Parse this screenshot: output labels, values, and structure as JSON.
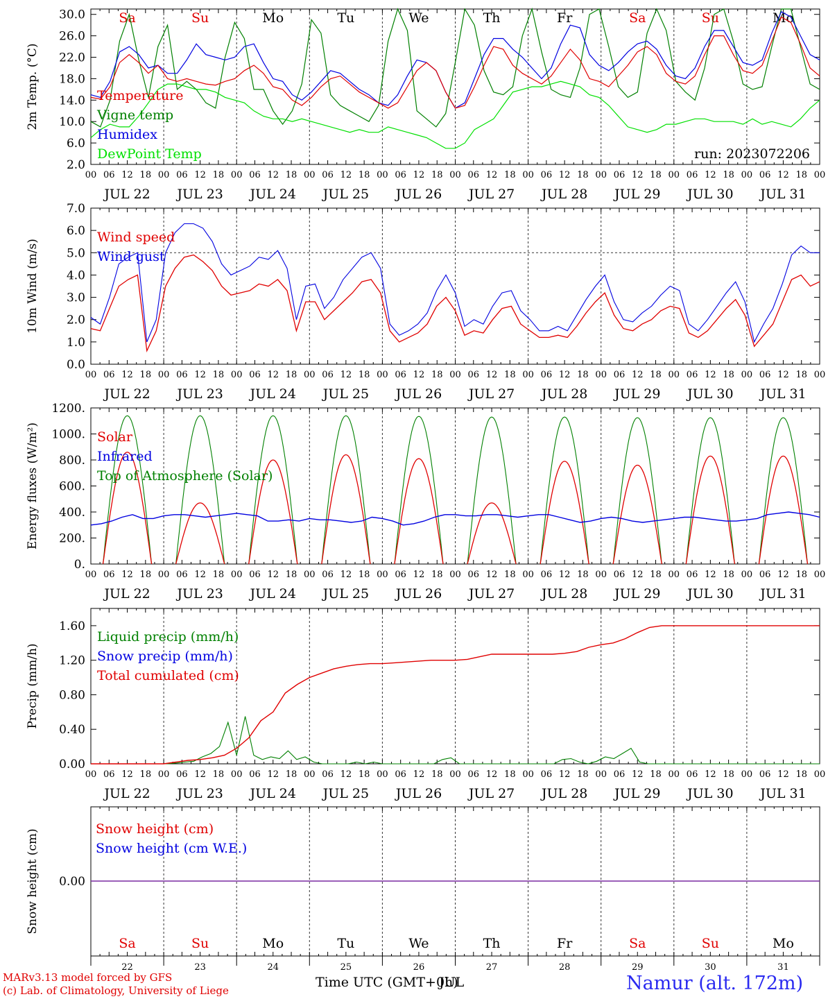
{
  "run_label": "run: 2023072206",
  "station": "Namur (alt. 172m)",
  "credit1": "MARv3.13 model forced by GFS",
  "credit2": "(c) Lab. of Climatology, University of Liege",
  "xlabel": "Time UTC (GMT+0h)",
  "xlabel_overlay": "JUL",
  "hour_ticks": [
    "00",
    "06",
    "12",
    "18"
  ],
  "days": [
    "JUL 22",
    "JUL 23",
    "JUL 24",
    "JUL 25",
    "JUL 26",
    "JUL 27",
    "JUL 28",
    "JUL 29",
    "JUL 30",
    "JUL 31"
  ],
  "day_numbers": [
    "22",
    "23",
    "24",
    "25",
    "26",
    "27",
    "28",
    "29",
    "30",
    "31"
  ],
  "weekdays": [
    "Sa",
    "Su",
    "Mo",
    "Tu",
    "We",
    "Th",
    "Fr",
    "Sa",
    "Su",
    "Mo"
  ],
  "weekend_color": "#e00000",
  "weekday_color": "#000000",
  "chart_data": [
    {
      "type": "line",
      "ylabel": "2m Temp. (°C)",
      "ylim": [
        2,
        31
      ],
      "yticks": [
        "2.0",
        "6.0",
        "10.0",
        "14.0",
        "18.0",
        "22.0",
        "26.0",
        "30.0"
      ],
      "series": [
        {
          "name": "Temperature",
          "color": "#e00000",
          "values": [
            14.5,
            14.2,
            16.5,
            21.0,
            22.5,
            21.0,
            19.0,
            20.5,
            18.0,
            17.5,
            18.0,
            17.5,
            17.0,
            16.8,
            17.5,
            18.0,
            19.5,
            20.5,
            19.0,
            16.5,
            16.0,
            14.0,
            13.0,
            14.5,
            16.5,
            18.0,
            18.5,
            17.0,
            15.5,
            14.5,
            13.5,
            12.5,
            13.5,
            16.5,
            19.5,
            21.0,
            19.5,
            15.5,
            12.5,
            13.0,
            16.5,
            20.5,
            24.0,
            23.5,
            20.5,
            19.0,
            18.0,
            17.0,
            18.5,
            21.0,
            23.5,
            21.5,
            18.0,
            17.5,
            16.5,
            18.5,
            20.5,
            23.0,
            24.0,
            22.5,
            19.0,
            17.5,
            17.0,
            18.5,
            22.5,
            26.0,
            26.0,
            22.5,
            19.5,
            19.0,
            20.5,
            25.0,
            29.5,
            28.5,
            24.5,
            20.0,
            18.5
          ]
        },
        {
          "name": "Vigne temp",
          "color": "#008000",
          "values": [
            10.0,
            9.0,
            14.0,
            25.0,
            30.0,
            21.5,
            14.5,
            24.0,
            28.0,
            16.0,
            17.5,
            16.0,
            13.5,
            12.5,
            22.0,
            28.5,
            25.5,
            16.0,
            16.0,
            12.0,
            9.5,
            12.0,
            17.0,
            29.0,
            26.5,
            15.0,
            13.0,
            12.0,
            11.0,
            10.0,
            13.0,
            25.0,
            33.0,
            27.0,
            12.0,
            10.5,
            9.0,
            11.5,
            21.0,
            31.0,
            28.0,
            19.5,
            15.5,
            15.0,
            16.5,
            26.0,
            34.0,
            23.0,
            16.0,
            15.0,
            14.5,
            20.0,
            30.0,
            34.0,
            24.0,
            16.5,
            14.5,
            15.5,
            26.5,
            34.0,
            27.0,
            17.5,
            15.5,
            14.0,
            20.0,
            30.0,
            34.0,
            25.0,
            17.0,
            16.0,
            16.5,
            24.0,
            31.0,
            32.0,
            24.0,
            17.0,
            16.0
          ]
        },
        {
          "name": "Humidex",
          "color": "#0000e0",
          "values": [
            15.0,
            14.5,
            17.5,
            23.0,
            24.0,
            22.5,
            20.0,
            20.5,
            19.0,
            19.0,
            21.5,
            24.5,
            22.5,
            22.0,
            21.5,
            22.0,
            24.0,
            24.5,
            21.0,
            18.0,
            17.5,
            15.0,
            14.0,
            15.5,
            17.5,
            19.5,
            19.0,
            17.5,
            16.0,
            15.0,
            13.5,
            13.0,
            15.0,
            18.5,
            21.5,
            21.0,
            19.5,
            15.5,
            12.5,
            13.5,
            18.0,
            22.5,
            25.5,
            25.5,
            23.5,
            22.0,
            20.0,
            18.0,
            20.0,
            24.5,
            28.0,
            27.5,
            22.5,
            20.5,
            19.5,
            21.0,
            23.0,
            24.5,
            25.0,
            23.5,
            20.5,
            18.5,
            18.0,
            20.0,
            24.0,
            27.0,
            27.0,
            24.0,
            21.0,
            20.5,
            21.5,
            26.5,
            30.5,
            29.5,
            26.0,
            22.5,
            21.5
          ]
        },
        {
          "name": "DewPoint Temp",
          "color": "#00e000",
          "values": [
            7.0,
            8.5,
            9.5,
            9.0,
            9.0,
            11.0,
            13.5,
            16.0,
            17.0,
            17.0,
            16.5,
            16.0,
            16.0,
            15.5,
            14.5,
            14.0,
            13.5,
            12.0,
            11.0,
            10.5,
            10.5,
            10.0,
            10.5,
            10.0,
            9.5,
            9.0,
            8.5,
            8.0,
            8.5,
            8.0,
            8.0,
            9.0,
            8.5,
            8.0,
            7.5,
            7.0,
            6.0,
            5.0,
            5.0,
            6.0,
            8.5,
            9.5,
            10.5,
            13.0,
            15.5,
            16.0,
            16.5,
            16.5,
            17.0,
            17.5,
            17.0,
            16.5,
            15.0,
            14.5,
            13.0,
            11.0,
            9.0,
            8.5,
            8.0,
            8.5,
            9.5,
            9.5,
            10.0,
            10.5,
            10.5,
            10.0,
            10.0,
            10.0,
            9.5,
            10.5,
            9.5,
            10.0,
            9.5,
            9.0,
            10.5,
            12.5,
            14.0
          ]
        }
      ]
    },
    {
      "type": "line",
      "ylabel": "10m Wind (m/s)",
      "ylim": [
        0,
        7
      ],
      "yticks": [
        "0.0",
        "1.0",
        "2.0",
        "3.0",
        "4.0",
        "5.0",
        "6.0",
        "7.0"
      ],
      "reference_line": 5,
      "series": [
        {
          "name": "Wind speed",
          "color": "#e00000",
          "values": [
            1.6,
            1.5,
            2.5,
            3.5,
            3.8,
            4.0,
            0.6,
            1.5,
            3.5,
            4.3,
            4.8,
            4.9,
            4.6,
            4.2,
            3.5,
            3.1,
            3.2,
            3.3,
            3.6,
            3.5,
            3.8,
            3.3,
            1.5,
            2.8,
            2.8,
            2.0,
            2.4,
            2.8,
            3.2,
            3.7,
            3.8,
            3.2,
            1.5,
            1.0,
            1.2,
            1.4,
            1.8,
            2.6,
            3.0,
            2.4,
            1.3,
            1.5,
            1.4,
            2.0,
            2.5,
            2.6,
            1.8,
            1.5,
            1.2,
            1.2,
            1.3,
            1.2,
            1.7,
            2.3,
            2.8,
            3.2,
            2.2,
            1.6,
            1.5,
            1.8,
            2.0,
            2.4,
            2.6,
            2.5,
            1.4,
            1.2,
            1.5,
            2.0,
            2.5,
            2.9,
            2.2,
            0.8,
            1.3,
            1.8,
            2.8,
            3.8,
            4.0,
            3.5,
            3.7
          ]
        },
        {
          "name": "Wind gust",
          "color": "#0000e0",
          "values": [
            2.1,
            1.8,
            3.0,
            4.5,
            4.8,
            5.0,
            1.0,
            2.0,
            5.0,
            5.9,
            6.3,
            6.3,
            6.1,
            5.5,
            4.5,
            4.0,
            4.2,
            4.4,
            4.8,
            4.7,
            5.1,
            4.3,
            2.0,
            3.5,
            3.6,
            2.5,
            3.0,
            3.8,
            4.3,
            4.8,
            5.0,
            4.3,
            1.8,
            1.3,
            1.5,
            1.8,
            2.3,
            3.3,
            4.0,
            3.2,
            1.7,
            2.0,
            1.8,
            2.6,
            3.2,
            3.3,
            2.4,
            2.0,
            1.5,
            1.5,
            1.7,
            1.5,
            2.2,
            2.9,
            3.5,
            4.0,
            2.8,
            2.0,
            1.9,
            2.3,
            2.6,
            3.1,
            3.5,
            3.3,
            1.8,
            1.5,
            2.0,
            2.6,
            3.2,
            3.7,
            2.8,
            1.0,
            1.8,
            2.5,
            3.6,
            4.9,
            5.3,
            5.0,
            5.0
          ]
        }
      ]
    },
    {
      "type": "line",
      "ylabel": "Energy fluxes (W/m²)",
      "ylim": [
        0,
        1200
      ],
      "yticks": [
        "0.",
        "200.",
        "400.",
        "600.",
        "800.",
        "1000.",
        "1200."
      ],
      "series": [
        {
          "name": "Solar",
          "color": "#e00000",
          "day_peaks": [
            860,
            470,
            800,
            840,
            810,
            470,
            790,
            760,
            830,
            830
          ]
        },
        {
          "name": "Infrared",
          "color": "#0000e0",
          "values": [
            300,
            310,
            330,
            360,
            380,
            350,
            350,
            370,
            380,
            380,
            370,
            360,
            370,
            380,
            390,
            380,
            370,
            330,
            330,
            340,
            330,
            350,
            340,
            340,
            330,
            320,
            330,
            360,
            350,
            330,
            300,
            310,
            330,
            360,
            380,
            380,
            370,
            370,
            380,
            380,
            370,
            360,
            370,
            380,
            380,
            360,
            340,
            320,
            330,
            350,
            360,
            350,
            330,
            320,
            330,
            340,
            350,
            360,
            360,
            350,
            340,
            330,
            330,
            340,
            350,
            380,
            390,
            400,
            390,
            380,
            360
          ]
        },
        {
          "name": "Top of Atmosphere (Solar)",
          "color": "#008000",
          "day_peaks": [
            1140,
            1140,
            1140,
            1140,
            1135,
            1130,
            1130,
            1125,
            1125,
            1125
          ]
        }
      ]
    },
    {
      "type": "line",
      "ylabel": "Precip (mm/h)",
      "ylim": [
        0,
        1.8
      ],
      "yticks": [
        "0.00",
        "0.40",
        "0.80",
        "1.20",
        "1.60"
      ],
      "series": [
        {
          "name": "Liquid precip (mm/h)",
          "color": "#008000",
          "values": [
            0,
            0,
            0,
            0,
            0,
            0,
            0,
            0,
            0,
            0,
            0.01,
            0.02,
            0.03,
            0.08,
            0.12,
            0.2,
            0.48,
            0.1,
            0.55,
            0.1,
            0.05,
            0.08,
            0.06,
            0.15,
            0.05,
            0.08,
            0.02,
            0,
            0,
            0,
            0,
            0.02,
            0,
            0.02,
            0,
            0,
            0,
            0,
            0,
            0,
            0,
            0.05,
            0.07,
            0,
            0,
            0,
            0,
            0,
            0,
            0,
            0,
            0,
            0,
            0,
            0,
            0.05,
            0.06,
            0.02,
            0,
            0.03,
            0.08,
            0.06,
            0.12,
            0.18,
            0.02,
            0,
            0,
            0,
            0,
            0,
            0,
            0,
            0,
            0,
            0,
            0,
            0,
            0,
            0,
            0,
            0,
            0,
            0,
            0,
            0,
            0
          ]
        },
        {
          "name": "Snow precip (mm/h)",
          "color": "#0000e0",
          "values": []
        },
        {
          "name": "Total cumulated (cm)",
          "color": "#e00000",
          "values": [
            0,
            0,
            0,
            0,
            0,
            0,
            0,
            0.02,
            0.04,
            0.05,
            0.07,
            0.1,
            0.18,
            0.3,
            0.5,
            0.6,
            0.82,
            0.92,
            1.0,
            1.05,
            1.1,
            1.13,
            1.15,
            1.16,
            1.16,
            1.17,
            1.18,
            1.19,
            1.2,
            1.2,
            1.2,
            1.21,
            1.24,
            1.27,
            1.27,
            1.27,
            1.27,
            1.27,
            1.27,
            1.28,
            1.3,
            1.35,
            1.38,
            1.4,
            1.45,
            1.52,
            1.58,
            1.6,
            1.6,
            1.6,
            1.6,
            1.6,
            1.6,
            1.6,
            1.6,
            1.6,
            1.6,
            1.6,
            1.6,
            1.6,
            1.6
          ]
        }
      ]
    },
    {
      "type": "line",
      "ylabel": "Snow height (cm)",
      "yticks": [
        "0.00"
      ],
      "series": [
        {
          "name": "Snow height (cm)",
          "color": "#e00000",
          "values": [
            0
          ]
        },
        {
          "name": "Snow height (cm W.E.)",
          "color": "#0000e0",
          "values": [
            0
          ]
        }
      ]
    }
  ]
}
